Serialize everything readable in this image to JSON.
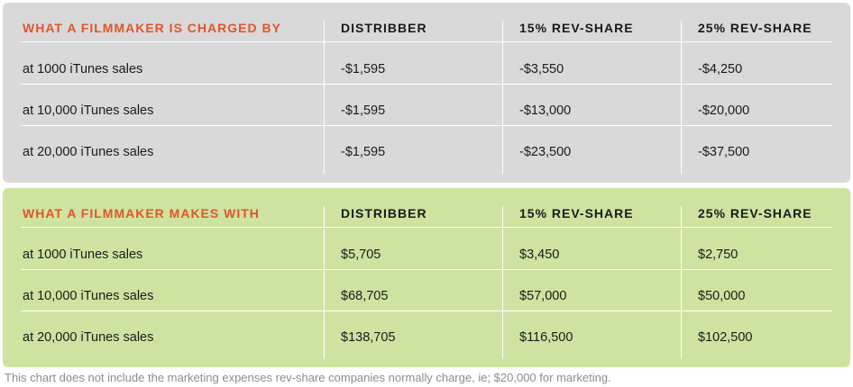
{
  "chart_data": [
    {
      "type": "table",
      "title": "WHAT A FILMMAKER IS CHARGED BY",
      "columns": [
        "DISTRIBBER",
        "15% REV-SHARE",
        "25% REV-SHARE"
      ],
      "rows": [
        {
          "label": "at 1000 iTunes sales",
          "values": [
            "-$1,595",
            "-$3,550",
            "-$4,250"
          ]
        },
        {
          "label": "at 10,000 iTunes sales",
          "values": [
            "-$1,595",
            "-$13,000",
            "-$20,000"
          ]
        },
        {
          "label": "at 20,000 iTunes sales",
          "values": [
            "-$1,595",
            "-$23,500",
            "-$37,500"
          ]
        }
      ]
    },
    {
      "type": "table",
      "title": "WHAT A FILMMAKER MAKES WITH",
      "columns": [
        "DISTRIBBER",
        "15% REV-SHARE",
        "25% REV-SHARE"
      ],
      "rows": [
        {
          "label": "at 1000 iTunes sales",
          "values": [
            "$5,705",
            "$3,450",
            "$2,750"
          ]
        },
        {
          "label": "at 10,000 iTunes sales",
          "values": [
            "$68,705",
            "$57,000",
            "$50,000"
          ]
        },
        {
          "label": "at 20,000 iTunes sales",
          "values": [
            "$138,705",
            "$116,500",
            "$102,500"
          ]
        }
      ]
    }
  ],
  "footnote": "This chart does not include the marketing expenses rev-share companies normally charge, ie; $20,000 for marketing.",
  "colors": {
    "title": "#e0552a",
    "charged_panel": "#d9d9d9",
    "makes_panel": "#cfe3a1",
    "divider": "#ffffff",
    "footnote": "#8c8c8c"
  }
}
